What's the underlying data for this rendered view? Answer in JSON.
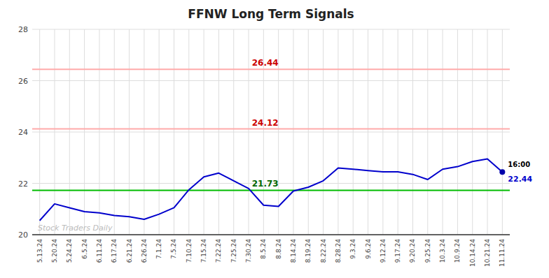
{
  "chart_data": {
    "type": "line",
    "title": "FFNW Long Term Signals",
    "categories": [
      "5.13.24",
      "5.20.24",
      "5.24.24",
      "6.5.24",
      "6.11.24",
      "6.17.24",
      "6.21.24",
      "6.26.24",
      "7.1.24",
      "7.5.24",
      "7.10.24",
      "7.15.24",
      "7.22.24",
      "7.25.24",
      "7.30.24",
      "8.5.24",
      "8.8.24",
      "8.14.24",
      "8.19.24",
      "8.22.24",
      "8.28.24",
      "9.3.24",
      "9.6.24",
      "9.12.24",
      "9.17.24",
      "9.20.24",
      "9.25.24",
      "10.3.24",
      "10.9.24",
      "10.14.24",
      "10.21.24",
      "11.11.24"
    ],
    "values": [
      20.55,
      21.2,
      21.05,
      20.9,
      20.85,
      20.75,
      20.7,
      20.6,
      20.8,
      21.05,
      21.75,
      22.25,
      22.4,
      22.1,
      21.8,
      21.15,
      21.1,
      21.7,
      21.85,
      22.1,
      22.6,
      22.55,
      22.5,
      22.45,
      22.45,
      22.35,
      22.15,
      22.55,
      22.65,
      22.85,
      22.95,
      22.44
    ],
    "color": "#0000cc",
    "last_point_color": "#0000aa",
    "reference_lines": [
      {
        "value": 21.73,
        "label": "21.73",
        "color": "#00bb00",
        "label_color": "#006600"
      },
      {
        "value": 26.44,
        "label": "26.44",
        "color": "#ffaaaa",
        "label_color": "#cc0000"
      },
      {
        "value": 24.12,
        "label": "24.12",
        "color": "#ffaaaa",
        "label_color": "#cc0000"
      }
    ],
    "annotations": [
      {
        "text": "16:00",
        "color": "#000000"
      },
      {
        "text": "22.44",
        "color": "#0000cc"
      }
    ],
    "watermark": {
      "text": "Stock Traders Daily",
      "color": "#bbbbbb"
    },
    "ylim": [
      20.0,
      28.0
    ],
    "yticks": [
      20,
      22,
      24,
      26,
      28
    ],
    "grid": true
  }
}
